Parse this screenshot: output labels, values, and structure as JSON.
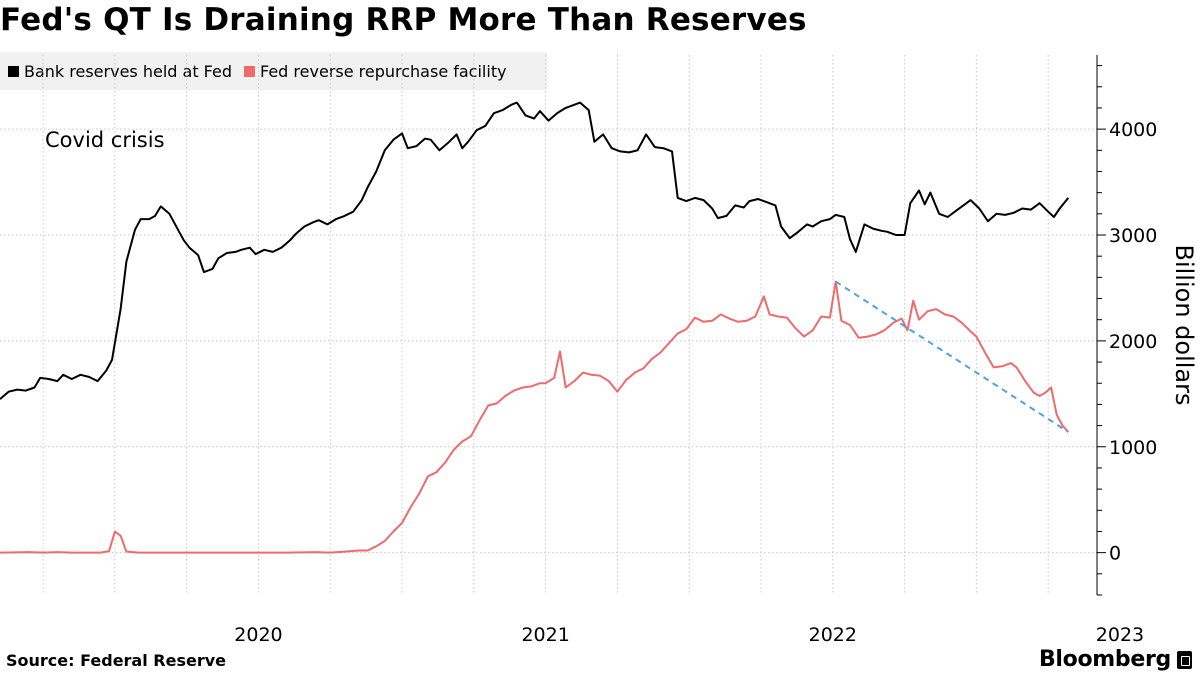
{
  "title": "Fed's QT Is Draining RRP More Than Reserves",
  "source": "Source: Federal Reserve",
  "brand": "Bloomberg",
  "colors": {
    "reserves": "#000000",
    "rrp": "#ef6b6b",
    "trend": "#4aa3e6",
    "legend_bg": "#f1f1f1"
  },
  "chart_data": {
    "type": "line",
    "annotation": "Covid crisis",
    "ylabel": "Billion dollars",
    "ylim": [
      -400,
      4700
    ],
    "xlim": [
      2019.6,
      2023.42
    ],
    "y_ticks": [
      0,
      1000,
      2000,
      3000,
      4000
    ],
    "x_ticks": [
      {
        "label": "2020",
        "value": 2020.0
      },
      {
        "label": "2021",
        "value": 2021.0
      },
      {
        "label": "2022",
        "value": 2022.0
      },
      {
        "label": "2023",
        "value": 2023.0
      }
    ],
    "grid": true,
    "legend": "top-left",
    "series": [
      {
        "name": "Bank reserves held at Fed",
        "key": "reserves",
        "points": [
          [
            2019.6,
            1450
          ],
          [
            2019.63,
            1520
          ],
          [
            2019.66,
            1540
          ],
          [
            2019.69,
            1530
          ],
          [
            2019.72,
            1560
          ],
          [
            2019.74,
            1650
          ],
          [
            2019.77,
            1640
          ],
          [
            2019.8,
            1620
          ],
          [
            2019.82,
            1680
          ],
          [
            2019.85,
            1640
          ],
          [
            2019.88,
            1680
          ],
          [
            2019.91,
            1660
          ],
          [
            2019.94,
            1620
          ],
          [
            2019.97,
            1720
          ],
          [
            2019.99,
            1820
          ],
          [
            2020.02,
            2300
          ],
          [
            2020.04,
            2750
          ],
          [
            2020.07,
            3050
          ],
          [
            2020.09,
            3150
          ],
          [
            2020.12,
            3150
          ],
          [
            2020.14,
            3180
          ],
          [
            2020.16,
            3270
          ],
          [
            2020.19,
            3200
          ],
          [
            2020.22,
            3050
          ],
          [
            2020.24,
            2950
          ],
          [
            2020.26,
            2880
          ],
          [
            2020.29,
            2810
          ],
          [
            2020.31,
            2650
          ],
          [
            2020.34,
            2680
          ],
          [
            2020.36,
            2780
          ],
          [
            2020.39,
            2830
          ],
          [
            2020.42,
            2840
          ],
          [
            2020.44,
            2860
          ],
          [
            2020.47,
            2880
          ],
          [
            2020.49,
            2820
          ],
          [
            2020.52,
            2860
          ],
          [
            2020.55,
            2840
          ],
          [
            2020.58,
            2880
          ],
          [
            2020.61,
            2950
          ],
          [
            2020.63,
            3010
          ],
          [
            2020.66,
            3080
          ],
          [
            2020.69,
            3120
          ],
          [
            2020.71,
            3140
          ],
          [
            2020.74,
            3100
          ],
          [
            2020.77,
            3150
          ],
          [
            2020.8,
            3180
          ],
          [
            2020.83,
            3220
          ],
          [
            2020.86,
            3330
          ],
          [
            2020.88,
            3450
          ],
          [
            2020.91,
            3600
          ],
          [
            2020.94,
            3800
          ],
          [
            2020.97,
            3900
          ],
          [
            2021.0,
            3960
          ],
          [
            2021.02,
            3820
          ],
          [
            2021.05,
            3840
          ],
          [
            2021.08,
            3910
          ],
          [
            2021.1,
            3900
          ],
          [
            2021.13,
            3800
          ],
          [
            2021.16,
            3870
          ],
          [
            2021.19,
            3950
          ],
          [
            2021.21,
            3820
          ],
          [
            2021.23,
            3880
          ],
          [
            2021.26,
            3990
          ],
          [
            2021.29,
            4030
          ],
          [
            2021.32,
            4150
          ],
          [
            2021.35,
            4180
          ],
          [
            2021.38,
            4230
          ],
          [
            2021.4,
            4250
          ],
          [
            2021.43,
            4130
          ],
          [
            2021.46,
            4100
          ],
          [
            2021.48,
            4170
          ],
          [
            2021.51,
            4080
          ],
          [
            2021.54,
            4150
          ],
          [
            2021.57,
            4200
          ],
          [
            2021.59,
            4220
          ],
          [
            2021.62,
            4250
          ],
          [
            2021.65,
            4180
          ],
          [
            2021.67,
            3880
          ],
          [
            2021.7,
            3950
          ],
          [
            2021.73,
            3820
          ],
          [
            2021.76,
            3790
          ],
          [
            2021.79,
            3780
          ],
          [
            2021.82,
            3800
          ],
          [
            2021.85,
            3950
          ],
          [
            2021.88,
            3830
          ],
          [
            2021.91,
            3820
          ],
          [
            2021.94,
            3790
          ],
          [
            2021.96,
            3350
          ],
          [
            2021.99,
            3320
          ],
          [
            2022.02,
            3350
          ],
          [
            2022.05,
            3330
          ],
          [
            2022.08,
            3250
          ],
          [
            2022.1,
            3160
          ],
          [
            2022.13,
            3180
          ],
          [
            2022.16,
            3280
          ],
          [
            2022.19,
            3260
          ],
          [
            2022.21,
            3320
          ],
          [
            2022.24,
            3340
          ],
          [
            2022.27,
            3310
          ],
          [
            2022.3,
            3280
          ],
          [
            2022.32,
            3080
          ],
          [
            2022.35,
            2970
          ],
          [
            2022.38,
            3030
          ],
          [
            2022.41,
            3100
          ],
          [
            2022.43,
            3080
          ],
          [
            2022.46,
            3130
          ],
          [
            2022.49,
            3150
          ],
          [
            2022.51,
            3190
          ],
          [
            2022.54,
            3170
          ],
          [
            2022.56,
            2960
          ],
          [
            2022.58,
            2840
          ],
          [
            2022.61,
            3100
          ],
          [
            2022.64,
            3060
          ],
          [
            2022.67,
            3040
          ],
          [
            2022.69,
            3030
          ],
          [
            2022.72,
            3000
          ],
          [
            2022.75,
            3000
          ],
          [
            2022.77,
            3300
          ],
          [
            2022.8,
            3420
          ],
          [
            2022.82,
            3290
          ],
          [
            2022.84,
            3400
          ],
          [
            2022.87,
            3200
          ],
          [
            2022.9,
            3170
          ],
          [
            2022.93,
            3230
          ],
          [
            2022.96,
            3290
          ],
          [
            2022.98,
            3330
          ],
          [
            2023.01,
            3250
          ],
          [
            2023.04,
            3130
          ],
          [
            2023.07,
            3200
          ],
          [
            2023.1,
            3190
          ],
          [
            2023.13,
            3210
          ],
          [
            2023.16,
            3250
          ],
          [
            2023.19,
            3240
          ],
          [
            2023.22,
            3300
          ],
          [
            2023.25,
            3220
          ],
          [
            2023.27,
            3170
          ],
          [
            2023.29,
            3250
          ],
          [
            2023.32,
            3350
          ]
        ]
      },
      {
        "name": "Fed reverse repurchase facility",
        "key": "rrp",
        "points": [
          [
            2019.6,
            0
          ],
          [
            2019.7,
            5
          ],
          [
            2019.75,
            0
          ],
          [
            2019.8,
            5
          ],
          [
            2019.85,
            0
          ],
          [
            2019.95,
            0
          ],
          [
            2019.98,
            15
          ],
          [
            2020.0,
            200
          ],
          [
            2020.02,
            160
          ],
          [
            2020.04,
            10
          ],
          [
            2020.08,
            0
          ],
          [
            2020.2,
            0
          ],
          [
            2020.4,
            0
          ],
          [
            2020.6,
            0
          ],
          [
            2020.7,
            5
          ],
          [
            2020.75,
            0
          ],
          [
            2020.8,
            10
          ],
          [
            2020.85,
            20
          ],
          [
            2020.88,
            20
          ],
          [
            2020.91,
            60
          ],
          [
            2020.94,
            110
          ],
          [
            2020.97,
            200
          ],
          [
            2021.0,
            280
          ],
          [
            2021.03,
            430
          ],
          [
            2021.06,
            560
          ],
          [
            2021.09,
            720
          ],
          [
            2021.12,
            760
          ],
          [
            2021.15,
            850
          ],
          [
            2021.18,
            970
          ],
          [
            2021.21,
            1050
          ],
          [
            2021.24,
            1100
          ],
          [
            2021.27,
            1250
          ],
          [
            2021.3,
            1390
          ],
          [
            2021.33,
            1410
          ],
          [
            2021.36,
            1480
          ],
          [
            2021.39,
            1530
          ],
          [
            2021.42,
            1560
          ],
          [
            2021.45,
            1570
          ],
          [
            2021.48,
            1600
          ],
          [
            2021.5,
            1600
          ],
          [
            2021.53,
            1650
          ],
          [
            2021.55,
            1900
          ],
          [
            2021.57,
            1560
          ],
          [
            2021.6,
            1620
          ],
          [
            2021.63,
            1700
          ],
          [
            2021.66,
            1680
          ],
          [
            2021.69,
            1670
          ],
          [
            2021.72,
            1620
          ],
          [
            2021.75,
            1520
          ],
          [
            2021.78,
            1630
          ],
          [
            2021.81,
            1700
          ],
          [
            2021.84,
            1740
          ],
          [
            2021.87,
            1830
          ],
          [
            2021.9,
            1890
          ],
          [
            2021.93,
            1980
          ],
          [
            2021.96,
            2070
          ],
          [
            2021.99,
            2110
          ],
          [
            2022.02,
            2220
          ],
          [
            2022.05,
            2180
          ],
          [
            2022.08,
            2190
          ],
          [
            2022.11,
            2250
          ],
          [
            2022.14,
            2210
          ],
          [
            2022.17,
            2180
          ],
          [
            2022.2,
            2190
          ],
          [
            2022.23,
            2230
          ],
          [
            2022.26,
            2420
          ],
          [
            2022.28,
            2250
          ],
          [
            2022.31,
            2230
          ],
          [
            2022.34,
            2220
          ],
          [
            2022.37,
            2120
          ],
          [
            2022.4,
            2040
          ],
          [
            2022.43,
            2100
          ],
          [
            2022.46,
            2230
          ],
          [
            2022.49,
            2220
          ],
          [
            2022.51,
            2560
          ],
          [
            2022.53,
            2190
          ],
          [
            2022.56,
            2150
          ],
          [
            2022.59,
            2030
          ],
          [
            2022.62,
            2040
          ],
          [
            2022.65,
            2060
          ],
          [
            2022.68,
            2100
          ],
          [
            2022.71,
            2170
          ],
          [
            2022.74,
            2210
          ],
          [
            2022.76,
            2100
          ],
          [
            2022.78,
            2380
          ],
          [
            2022.8,
            2200
          ],
          [
            2022.83,
            2280
          ],
          [
            2022.86,
            2300
          ],
          [
            2022.89,
            2250
          ],
          [
            2022.92,
            2230
          ],
          [
            2022.95,
            2170
          ],
          [
            2022.98,
            2090
          ],
          [
            2023.0,
            2040
          ],
          [
            2023.03,
            1890
          ],
          [
            2023.06,
            1750
          ],
          [
            2023.09,
            1760
          ],
          [
            2023.12,
            1790
          ],
          [
            2023.14,
            1750
          ],
          [
            2023.17,
            1620
          ],
          [
            2023.2,
            1510
          ],
          [
            2023.22,
            1480
          ],
          [
            2023.24,
            1510
          ],
          [
            2023.26,
            1560
          ],
          [
            2023.28,
            1300
          ],
          [
            2023.3,
            1200
          ],
          [
            2023.32,
            1140
          ]
        ]
      }
    ],
    "trend_line": {
      "from": [
        2022.51,
        2560
      ],
      "to": [
        2023.32,
        1140
      ]
    }
  }
}
